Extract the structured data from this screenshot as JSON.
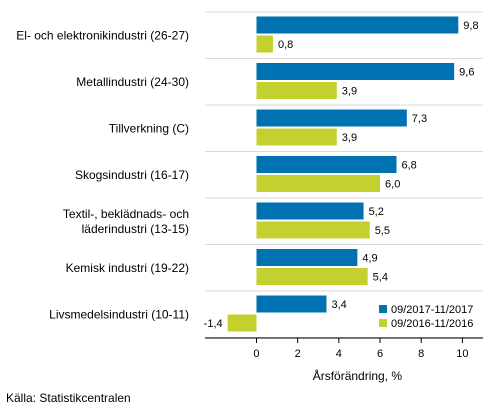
{
  "chart_data": {
    "type": "bar",
    "orientation": "horizontal",
    "categories": [
      [
        "El- och elektronikindustri (26-27)"
      ],
      [
        "Metallindustri (24-30)"
      ],
      [
        "Tillverkning (C)"
      ],
      [
        "Skogsindustri (16-17)"
      ],
      [
        "Textil-, beklädnads- och",
        "läderindustri (13-15)"
      ],
      [
        "Kemisk industri (19-22)"
      ],
      [
        "Livsmedelsindustri (10-11)"
      ]
    ],
    "series": [
      {
        "name": "09/2017-11/2017",
        "color": "#0072b2",
        "values": [
          9.8,
          9.6,
          7.3,
          6.8,
          5.2,
          4.9,
          3.4
        ],
        "labels": [
          "9,8",
          "9,6",
          "7,3",
          "6,8",
          "5,2",
          "4,9",
          "3,4"
        ]
      },
      {
        "name": "09/2016-11/2016",
        "color": "#c3d02f",
        "values": [
          0.8,
          3.9,
          3.9,
          6.0,
          5.5,
          5.4,
          -1.4
        ],
        "labels": [
          "0,8",
          "3,9",
          "3,9",
          "6,0",
          "5,5",
          "5,4",
          "-1,4"
        ]
      }
    ],
    "xlim": [
      -2.5,
      11
    ],
    "xticks": [
      0,
      2,
      4,
      6,
      8,
      10
    ],
    "xtick_labels": [
      "0",
      "2",
      "4",
      "6",
      "8",
      "10"
    ],
    "xlabel": "Årsförändring, %",
    "legend_position": "bottom-right"
  },
  "source": "Källa: Statistikcentralen"
}
